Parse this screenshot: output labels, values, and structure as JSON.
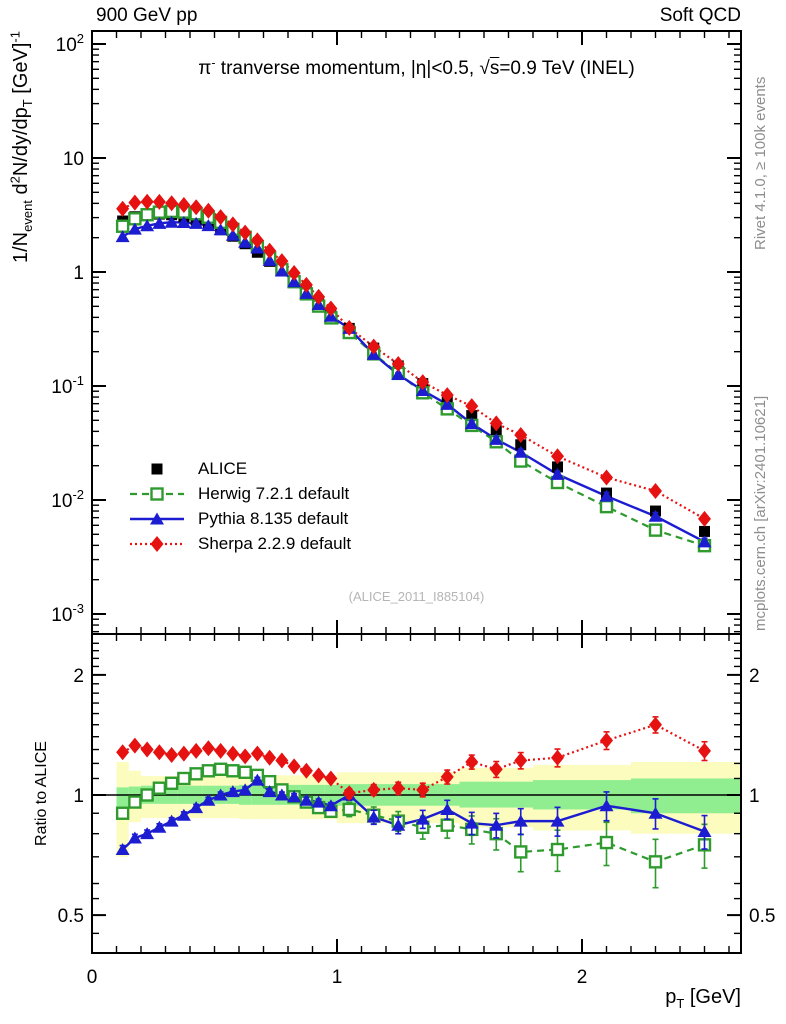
{
  "header": {
    "left": "900 GeV pp",
    "right": "Soft QCD"
  },
  "texts": {
    "title_parts": [
      {
        "t": "π"
      },
      {
        "t": "-",
        "sup": true
      },
      {
        "t": " tranverse momentum, |η|<0.5, "
      },
      {
        "t": "√"
      },
      {
        "t": "s",
        "over": true
      },
      {
        "t": "=0.9 TeV (INEL)"
      }
    ],
    "ylabel_parts": [
      {
        "t": "1/N"
      },
      {
        "t": "event",
        "sub": true
      },
      {
        "t": " d"
      },
      {
        "t": "2",
        "sup": true
      },
      {
        "t": "N/dy/dp"
      },
      {
        "t": "T",
        "sub": true
      },
      {
        "t": " [GeV]"
      },
      {
        "t": "-1",
        "sup": true
      }
    ],
    "xlabel_parts": [
      {
        "t": "p"
      },
      {
        "t": "T",
        "sub": true
      },
      {
        "t": " [GeV]"
      }
    ],
    "ratio_ylabel": "Ratio to ALICE",
    "watermark": "(ALICE_2011_I885104)",
    "side_top": "Rivet 4.1.0, ≥ 100k events",
    "side_bottom": "mcplots.cern.ch [arXiv:2401.10621]"
  },
  "axes": {
    "x_ticks": [
      {
        "label": "0",
        "v": 0
      },
      {
        "label": "1",
        "v": 1
      },
      {
        "label": "2",
        "v": 2
      }
    ],
    "y_top_ticks": [
      {
        "m": "10",
        "s": "2",
        "v": 100
      },
      {
        "m": "10",
        "s": "",
        "v": 10
      },
      {
        "m": "1",
        "s": "",
        "v": 1
      },
      {
        "m": "10",
        "s": "-1",
        "v": 0.1
      },
      {
        "m": "10",
        "s": "-2",
        "v": 0.01
      },
      {
        "m": "10",
        "s": "-3",
        "v": 0.001
      }
    ],
    "y_bottom_ticks": [
      {
        "label": "2",
        "v": 2
      },
      {
        "label": "1",
        "v": 1
      },
      {
        "label": "0.5",
        "v": 0.5
      }
    ]
  },
  "colors": {
    "alice": "#000000",
    "herwig": "#2f9b2f",
    "pythia": "#1c1cd0",
    "sherpa": "#e61212",
    "band_yellow": "#fcfcbe",
    "band_green": "#90ee90",
    "frame": "#000000"
  },
  "chart_data": {
    "type": "line",
    "title": "π- tranverse momentum, |η|<0.5, √s=0.9 TeV (INEL)",
    "xlabel": "pT [GeV]",
    "ylabel_top": "1/Nevent d2N/dy/dpT [GeV]-1",
    "ylabel_bottom": "Ratio to ALICE",
    "x_range": [
      0,
      2.649
    ],
    "y_top_range_log": [
      0.00067,
      130
    ],
    "y_bottom_range_log": [
      0.4,
      2.53
    ],
    "x": [
      0.125,
      0.175,
      0.225,
      0.275,
      0.325,
      0.375,
      0.425,
      0.475,
      0.525,
      0.575,
      0.625,
      0.675,
      0.725,
      0.775,
      0.825,
      0.875,
      0.925,
      0.975,
      1.05,
      1.15,
      1.25,
      1.35,
      1.45,
      1.55,
      1.65,
      1.75,
      1.9,
      2.1,
      2.3,
      2.5
    ],
    "bin_edges": [
      0.1,
      0.15,
      0.2,
      0.25,
      0.3,
      0.35,
      0.4,
      0.45,
      0.5,
      0.55,
      0.6,
      0.65,
      0.7,
      0.75,
      0.8,
      0.85,
      0.9,
      0.95,
      1.0,
      1.1,
      1.2,
      1.3,
      1.4,
      1.5,
      1.6,
      1.7,
      1.8,
      2.0,
      2.2,
      2.4,
      2.6
    ],
    "series": [
      {
        "name": "ALICE",
        "marker": "square",
        "line": "none",
        "color_key": "alice",
        "values": [
          2.8,
          3.05,
          3.18,
          3.22,
          3.18,
          3.05,
          2.87,
          2.63,
          2.35,
          2.06,
          1.77,
          1.49,
          1.24,
          1.02,
          0.83,
          0.67,
          0.54,
          0.435,
          0.32,
          0.215,
          0.15,
          0.105,
          0.075,
          0.055,
          0.0405,
          0.0305,
          0.0195,
          0.0115,
          0.008,
          0.0053
        ]
      },
      {
        "name": "Herwig 7.2.1 default",
        "marker": "open-square",
        "line": "dashed",
        "color_key": "herwig",
        "err_scale": 1.15,
        "ratio_to_alice": [
          0.9,
          0.96,
          1.0,
          1.04,
          1.07,
          1.1,
          1.13,
          1.15,
          1.16,
          1.15,
          1.14,
          1.12,
          1.08,
          1.03,
          0.99,
          0.96,
          0.93,
          0.91,
          0.92,
          0.89,
          0.86,
          0.83,
          0.84,
          0.82,
          0.8,
          0.72,
          0.73,
          0.76,
          0.68,
          0.75
        ]
      },
      {
        "name": "Pythia 8.135 default",
        "marker": "triangle",
        "line": "solid",
        "color_key": "pythia",
        "err_scale": 0.95,
        "ratio_to_alice": [
          0.73,
          0.78,
          0.8,
          0.83,
          0.86,
          0.89,
          0.93,
          0.97,
          1.0,
          1.02,
          1.03,
          1.09,
          1.02,
          1.0,
          0.99,
          0.97,
          0.96,
          0.94,
          1.0,
          0.88,
          0.84,
          0.87,
          0.92,
          0.85,
          0.84,
          0.86,
          0.86,
          0.94,
          0.9,
          0.81
        ]
      },
      {
        "name": "Sherpa 2.2.9 default",
        "marker": "diamond",
        "line": "dotted",
        "color_key": "sherpa",
        "err_scale": 0.85,
        "ratio_to_alice": [
          1.28,
          1.33,
          1.3,
          1.28,
          1.26,
          1.27,
          1.29,
          1.31,
          1.29,
          1.27,
          1.25,
          1.27,
          1.24,
          1.22,
          1.18,
          1.15,
          1.12,
          1.1,
          1.01,
          1.03,
          1.04,
          1.03,
          1.11,
          1.21,
          1.16,
          1.22,
          1.24,
          1.37,
          1.5,
          1.29
        ]
      }
    ],
    "bands": {
      "yellow": [
        [
          0.7,
          1.21
        ],
        [
          0.855,
          1.15
        ],
        [
          0.875,
          1.115
        ],
        [
          0.875,
          1.115
        ],
        [
          0.875,
          1.115
        ],
        [
          0.875,
          1.115
        ],
        [
          0.875,
          1.115
        ],
        [
          0.875,
          1.115
        ],
        [
          0.875,
          1.115
        ],
        [
          0.875,
          1.115
        ],
        [
          0.87,
          1.12
        ],
        [
          0.87,
          1.12
        ],
        [
          0.87,
          1.12
        ],
        [
          0.87,
          1.12
        ],
        [
          0.87,
          1.12
        ],
        [
          0.87,
          1.12
        ],
        [
          0.87,
          1.12
        ],
        [
          0.87,
          1.12
        ],
        [
          0.85,
          1.14
        ],
        [
          0.85,
          1.14
        ],
        [
          0.85,
          1.14
        ],
        [
          0.85,
          1.14
        ],
        [
          0.85,
          1.14
        ],
        [
          0.83,
          1.17
        ],
        [
          0.83,
          1.17
        ],
        [
          0.83,
          1.17
        ],
        [
          0.815,
          1.19
        ],
        [
          0.815,
          1.19
        ],
        [
          0.8,
          1.21
        ],
        [
          0.8,
          1.21
        ]
      ],
      "green": [
        [
          0.92,
          1.045
        ],
        [
          0.945,
          1.05
        ],
        [
          0.95,
          1.055
        ],
        [
          0.95,
          1.055
        ],
        [
          0.95,
          1.055
        ],
        [
          0.95,
          1.055
        ],
        [
          0.95,
          1.055
        ],
        [
          0.95,
          1.055
        ],
        [
          0.95,
          1.055
        ],
        [
          0.95,
          1.055
        ],
        [
          0.945,
          1.06
        ],
        [
          0.945,
          1.06
        ],
        [
          0.945,
          1.06
        ],
        [
          0.945,
          1.06
        ],
        [
          0.945,
          1.06
        ],
        [
          0.945,
          1.06
        ],
        [
          0.945,
          1.06
        ],
        [
          0.945,
          1.06
        ],
        [
          0.94,
          1.065
        ],
        [
          0.94,
          1.065
        ],
        [
          0.94,
          1.065
        ],
        [
          0.94,
          1.065
        ],
        [
          0.94,
          1.065
        ],
        [
          0.93,
          1.08
        ],
        [
          0.93,
          1.08
        ],
        [
          0.93,
          1.08
        ],
        [
          0.92,
          1.09
        ],
        [
          0.92,
          1.09
        ],
        [
          0.9,
          1.1
        ],
        [
          0.9,
          1.1
        ]
      ]
    },
    "legend_position": "upper-left-inside",
    "grid": false
  },
  "legend": {
    "items": [
      {
        "label": "ALICE"
      },
      {
        "label": "Herwig 7.2.1 default"
      },
      {
        "label": "Pythia 8.135 default"
      },
      {
        "label": "Sherpa 2.2.9 default"
      }
    ]
  }
}
